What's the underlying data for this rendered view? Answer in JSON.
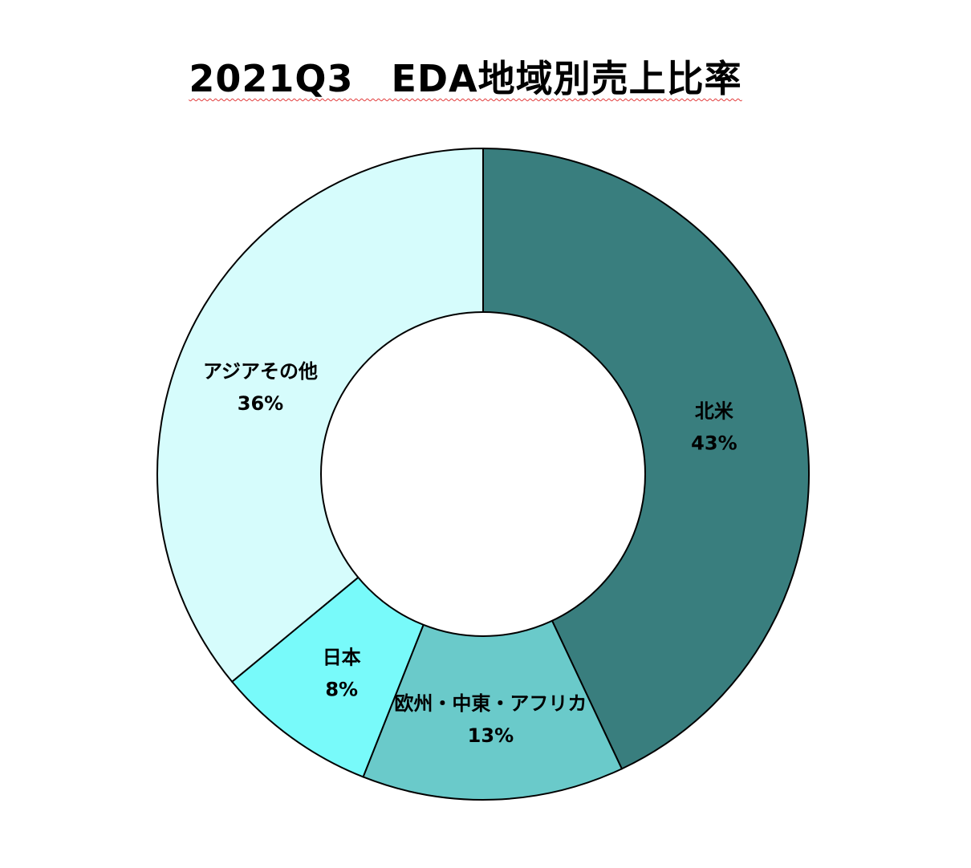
{
  "chart_data": {
    "type": "pie",
    "variant": "donut",
    "title": "2021Q3　EDA地域別売上比率",
    "categories": [
      "北米",
      "欧州・中東・アフリカ",
      "日本",
      "アジアその他"
    ],
    "values": [
      43,
      13,
      8,
      36
    ],
    "value_labels": [
      "43%",
      "13%",
      "8%",
      "36%"
    ],
    "colors": [
      "#397e7e",
      "#6acaca",
      "#78fafa",
      "#d6fcfc"
    ],
    "start_angle": "12 o'clock",
    "direction": "clockwise",
    "legend": "none",
    "data_labels": "category and percent"
  }
}
